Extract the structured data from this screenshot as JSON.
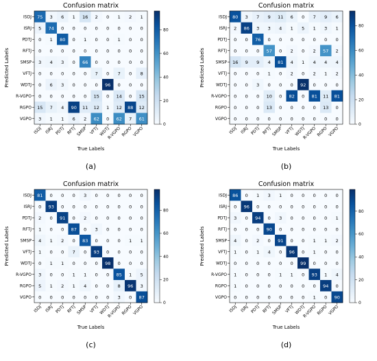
{
  "colors": {
    "low": "#f7fbff",
    "high": "#08306b",
    "text_dark": "#000000",
    "text_light": "#ffffff"
  },
  "chart_data": [
    {
      "type": "heatmap",
      "title": "Confusion matrix",
      "xlabel": "True Labels",
      "ylabel": "Predicted Labels",
      "panel_label": "(a)",
      "categories": [
        "ISDJ",
        "ISRJ",
        "PDTJ",
        "RFTJ",
        "SMSP",
        "VFTJ",
        "WDTJ",
        "R-VGPO",
        "RGPO",
        "VGPO"
      ],
      "values": [
        [
          75,
          3,
          6,
          1,
          16,
          2,
          0,
          1,
          2,
          1
        ],
        [
          5,
          74,
          0,
          0,
          0,
          0,
          0,
          0,
          0,
          0
        ],
        [
          0,
          1,
          80,
          0,
          1,
          0,
          0,
          1,
          0,
          0
        ],
        [
          0,
          0,
          0,
          0,
          0,
          0,
          0,
          0,
          0,
          0
        ],
        [
          3,
          4,
          3,
          0,
          66,
          0,
          0,
          0,
          0,
          0
        ],
        [
          0,
          0,
          0,
          0,
          0,
          7,
          0,
          7,
          0,
          8
        ],
        [
          0,
          6,
          3,
          0,
          0,
          0,
          96,
          0,
          0,
          0
        ],
        [
          0,
          0,
          0,
          0,
          0,
          15,
          0,
          14,
          0,
          15
        ],
        [
          15,
          7,
          4,
          90,
          11,
          12,
          1,
          12,
          88,
          12
        ],
        [
          3,
          1,
          1,
          6,
          2,
          62,
          0,
          62,
          7,
          61
        ]
      ],
      "colorbar_ticks": [
        0,
        20,
        40,
        60,
        80
      ],
      "vmin": 0,
      "vmax": 96
    },
    {
      "type": "heatmap",
      "title": "Confusion matrix",
      "xlabel": "True Labels",
      "ylabel": "Predicted Labels",
      "panel_label": "(b)",
      "categories": [
        "ISDJ",
        "ISRJ",
        "PDTJ",
        "RFTJ",
        "SMSP",
        "VFTJ",
        "WDTJ",
        "R-VGPO",
        "RGPO",
        "VGPO"
      ],
      "values": [
        [
          80,
          3,
          7,
          9,
          11,
          6,
          0,
          7,
          9,
          6
        ],
        [
          2,
          86,
          3,
          3,
          4,
          1,
          5,
          1,
          3,
          1
        ],
        [
          0,
          0,
          76,
          0,
          0,
          0,
          0,
          0,
          0,
          0
        ],
        [
          0,
          0,
          0,
          57,
          0,
          2,
          0,
          2,
          57,
          2
        ],
        [
          16,
          9,
          9,
          4,
          81,
          4,
          1,
          4,
          4,
          4
        ],
        [
          0,
          0,
          0,
          1,
          0,
          2,
          0,
          2,
          1,
          2
        ],
        [
          0,
          0,
          3,
          0,
          0,
          0,
          92,
          0,
          0,
          0
        ],
        [
          0,
          0,
          0,
          10,
          0,
          82,
          0,
          81,
          11,
          81
        ],
        [
          0,
          0,
          0,
          13,
          0,
          0,
          0,
          0,
          13,
          0
        ],
        [
          0,
          0,
          0,
          0,
          0,
          0,
          0,
          0,
          0,
          0
        ]
      ],
      "colorbar_ticks": [
        0,
        20,
        40,
        60,
        80
      ],
      "vmin": 0,
      "vmax": 92
    },
    {
      "type": "heatmap",
      "title": "Confusion matrix",
      "xlabel": "True Labels",
      "ylabel": "Predicted Labels",
      "panel_label": "(c)",
      "categories": [
        "ISDJ",
        "ISRJ",
        "PDTJ",
        "RFTJ",
        "SMSP",
        "VFTJ",
        "WDTJ",
        "R-VGPO",
        "RGPO",
        "VGPO"
      ],
      "values": [
        [
          81,
          0,
          0,
          0,
          3,
          0,
          0,
          0,
          0,
          0
        ],
        [
          0,
          93,
          0,
          0,
          0,
          0,
          0,
          0,
          0,
          0
        ],
        [
          2,
          0,
          91,
          0,
          2,
          0,
          0,
          0,
          0,
          0
        ],
        [
          1,
          0,
          0,
          87,
          0,
          3,
          0,
          0,
          0,
          0
        ],
        [
          4,
          1,
          2,
          0,
          83,
          0,
          0,
          0,
          1,
          1
        ],
        [
          1,
          0,
          0,
          7,
          0,
          93,
          0,
          0,
          0,
          0
        ],
        [
          0,
          1,
          1,
          0,
          0,
          0,
          98,
          0,
          0,
          0
        ],
        [
          3,
          0,
          0,
          1,
          1,
          0,
          0,
          85,
          1,
          5
        ],
        [
          5,
          1,
          2,
          1,
          4,
          0,
          0,
          8,
          96,
          3
        ],
        [
          0,
          0,
          0,
          0,
          0,
          0,
          0,
          3,
          0,
          87
        ]
      ],
      "colorbar_ticks": [
        0,
        20,
        40,
        60,
        80
      ],
      "vmin": 0,
      "vmax": 98
    },
    {
      "type": "heatmap",
      "title": "Confusion matrix",
      "xlabel": "True Labels",
      "ylabel": "Predicted Labels",
      "panel_label": "(d)",
      "categories": [
        "ISDJ",
        "ISRJ",
        "PDTJ",
        "RFTJ",
        "SMSP",
        "VFTJ",
        "WDTJ",
        "R-VGPO",
        "RGPO",
        "VGPO"
      ],
      "values": [
        [
          86,
          0,
          1,
          3,
          1,
          0,
          0,
          0,
          0,
          0
        ],
        [
          0,
          96,
          0,
          0,
          0,
          0,
          0,
          0,
          0,
          0
        ],
        [
          3,
          0,
          94,
          0,
          3,
          0,
          0,
          0,
          0,
          1
        ],
        [
          0,
          0,
          0,
          90,
          0,
          0,
          0,
          0,
          0,
          0
        ],
        [
          4,
          0,
          2,
          0,
          91,
          0,
          0,
          1,
          1,
          2
        ],
        [
          1,
          0,
          1,
          4,
          0,
          96,
          0,
          1,
          0,
          0
        ],
        [
          0,
          0,
          0,
          0,
          0,
          0,
          99,
          0,
          0,
          0
        ],
        [
          1,
          0,
          0,
          0,
          1,
          1,
          0,
          93,
          1,
          4
        ],
        [
          1,
          0,
          0,
          0,
          0,
          0,
          0,
          0,
          94,
          0
        ],
        [
          0,
          0,
          0,
          0,
          0,
          0,
          0,
          1,
          0,
          90
        ]
      ],
      "colorbar_ticks": [
        0,
        20,
        40,
        60,
        80
      ],
      "vmin": 0,
      "vmax": 99
    }
  ]
}
